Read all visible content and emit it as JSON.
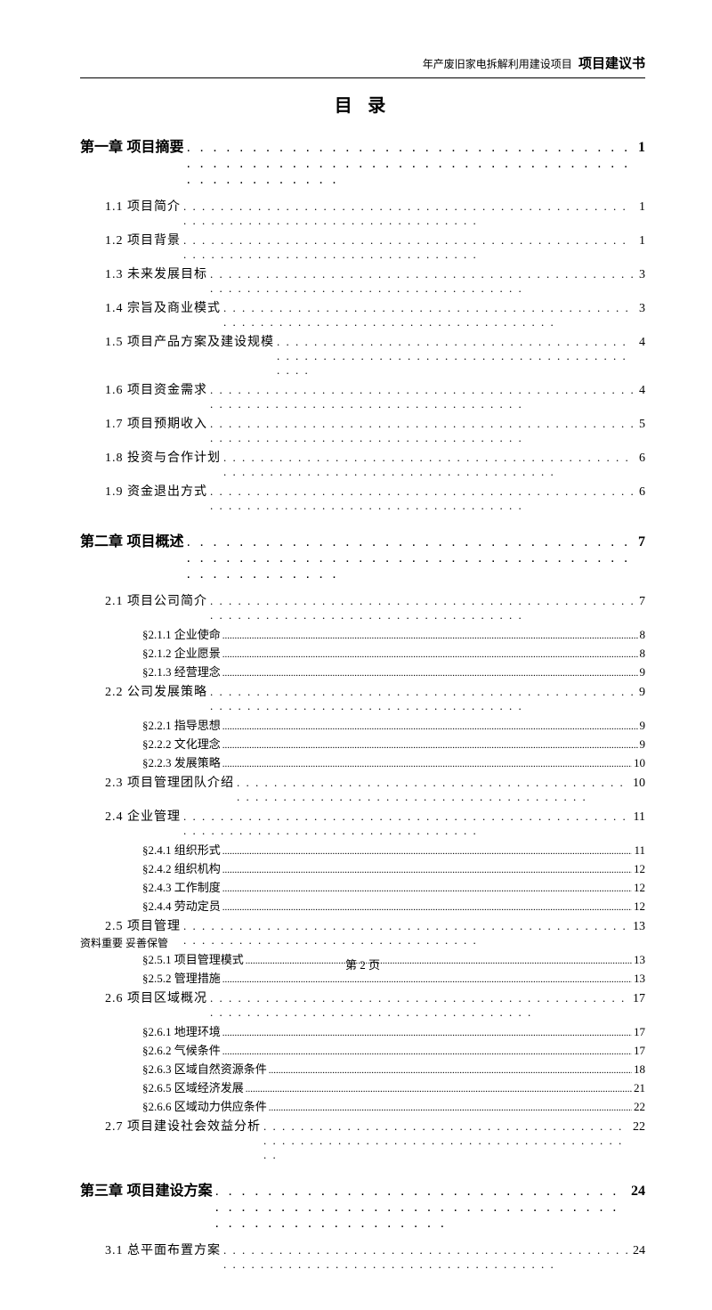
{
  "header": {
    "sub": "年产废旧家电拆解利用建设项目",
    "main": "项目建议书"
  },
  "toc_title": "目 录",
  "chapters": [
    {
      "label": "第一章 项目摘要",
      "page": "1",
      "subs": [
        {
          "label": "1.1 项目简介",
          "page": "1"
        },
        {
          "label": "1.2 项目背景",
          "page": "1"
        },
        {
          "label": "1.3 未来发展目标",
          "page": "3"
        },
        {
          "label": "1.4 宗旨及商业模式",
          "page": "3"
        },
        {
          "label": "1.5 项目产品方案及建设规模",
          "page": "4"
        },
        {
          "label": "1.6 项目资金需求",
          "page": "4"
        },
        {
          "label": "1.7 项目预期收入",
          "page": "5"
        },
        {
          "label": "1.8 投资与合作计划",
          "page": "6"
        },
        {
          "label": "1.9 资金退出方式",
          "page": "6"
        }
      ]
    },
    {
      "label": "第二章 项目概述",
      "page": "7",
      "subs": [
        {
          "label": "2.1 项目公司简介",
          "page": "7",
          "subs": [
            {
              "label": "§2.1.1 企业使命",
              "page": "8"
            },
            {
              "label": "§2.1.2 企业愿景",
              "page": "8"
            },
            {
              "label": "§2.1.3 经营理念",
              "page": "9"
            }
          ]
        },
        {
          "label": "2.2 公司发展策略",
          "page": "9",
          "subs": [
            {
              "label": "§2.2.1 指导思想",
              "page": "9"
            },
            {
              "label": "§2.2.2 文化理念",
              "page": "9"
            },
            {
              "label": "§2.2.3 发展策略",
              "page": "10"
            }
          ]
        },
        {
          "label": "2.3 项目管理团队介绍",
          "page": "10"
        },
        {
          "label": "2.4 企业管理",
          "page": "11",
          "subs": [
            {
              "label": "§2.4.1 组织形式",
              "page": "11"
            },
            {
              "label": "§2.4.2 组织机构",
              "page": "12"
            },
            {
              "label": "§2.4.3 工作制度",
              "page": "12"
            },
            {
              "label": "§2.4.4 劳动定员",
              "page": "12"
            }
          ]
        },
        {
          "label": "2.5 项目管理",
          "page": "13",
          "subs": [
            {
              "label": "§2.5.1 项目管理模式",
              "page": "13"
            },
            {
              "label": "§2.5.2 管理措施",
              "page": "13"
            }
          ]
        },
        {
          "label": "2.6 项目区域概况",
          "page": "17",
          "subs": [
            {
              "label": "§2.6.1 地理环境",
              "page": "17"
            },
            {
              "label": "§2.6.2 气候条件",
              "page": "17"
            },
            {
              "label": "§2.6.3 区域自然资源条件",
              "page": "18"
            },
            {
              "label": "§2.6.5 区域经济发展",
              "page": "21"
            },
            {
              "label": "§2.6.6 区域动力供应条件",
              "page": "22"
            }
          ]
        },
        {
          "label": "2.7 项目建设社会效益分析",
          "page": "22"
        }
      ]
    },
    {
      "label": "第三章 项目建设方案",
      "page": "24",
      "subs": [
        {
          "label": "3.1 总平面布置方案",
          "page": "24"
        }
      ]
    }
  ],
  "footer_note": "资料重要  妥善保管",
  "page_label": "第 2 页"
}
